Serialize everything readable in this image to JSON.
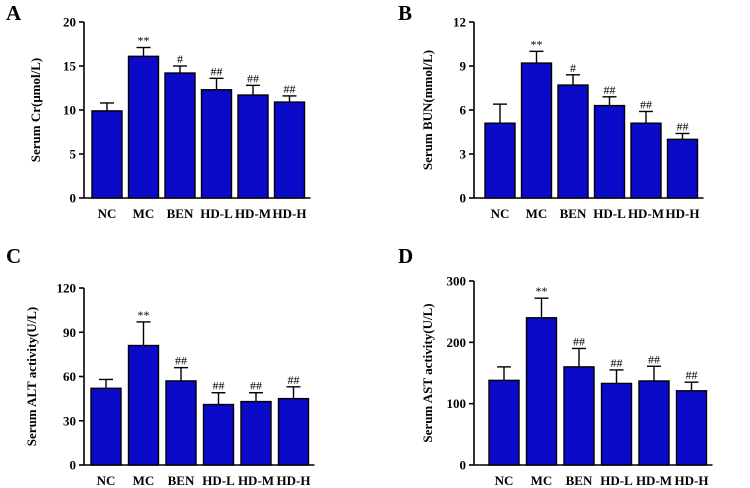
{
  "bar_color": "#0a0ac8",
  "chart_data": [
    {
      "type": "bar",
      "panel": "A",
      "ylabel": "Serum Cr(μmol/L)",
      "categories": [
        "NC",
        "MC",
        "BEN",
        "HD-L",
        "HD-M",
        "HD-H"
      ],
      "values": [
        9.9,
        16.1,
        14.2,
        12.3,
        11.7,
        10.9
      ],
      "errors": [
        0.9,
        1.0,
        0.8,
        1.3,
        1.1,
        0.7
      ],
      "annotations": [
        "",
        "**",
        "#",
        "##",
        "##",
        "##"
      ],
      "ylim": [
        0,
        20
      ],
      "yticks": [
        0,
        5,
        10,
        15,
        20
      ]
    },
    {
      "type": "bar",
      "panel": "B",
      "ylabel": "Serum BUN(mmol/L)",
      "categories": [
        "NC",
        "MC",
        "BEN",
        "HD-L",
        "HD-M",
        "HD-H"
      ],
      "values": [
        5.1,
        9.2,
        7.7,
        6.3,
        5.1,
        4.0
      ],
      "errors": [
        1.3,
        0.8,
        0.7,
        0.6,
        0.8,
        0.4
      ],
      "annotations": [
        "",
        "**",
        "#",
        "##",
        "##",
        "##"
      ],
      "ylim": [
        0,
        12
      ],
      "yticks": [
        0,
        3,
        6,
        9,
        12
      ]
    },
    {
      "type": "bar",
      "panel": "C",
      "ylabel": "Serum ALT activity(U/L)",
      "categories": [
        "NC",
        "MC",
        "BEN",
        "HD-L",
        "HD-M",
        "HD-H"
      ],
      "values": [
        52,
        81,
        57,
        41,
        43,
        45
      ],
      "errors": [
        6,
        16,
        9,
        8,
        6,
        8
      ],
      "annotations": [
        "",
        "**",
        "##",
        "##",
        "##",
        "##"
      ],
      "ylim": [
        0,
        120
      ],
      "yticks": [
        0,
        30,
        60,
        90,
        120
      ]
    },
    {
      "type": "bar",
      "panel": "D",
      "ylabel": "Serum AST activity(U/L)",
      "categories": [
        "NC",
        "MC",
        "BEN",
        "HD-L",
        "HD-M",
        "HD-H"
      ],
      "values": [
        138,
        240,
        160,
        133,
        137,
        121
      ],
      "errors": [
        22,
        32,
        30,
        22,
        24,
        14
      ],
      "annotations": [
        "",
        "**",
        "##",
        "##",
        "##",
        "##"
      ],
      "ylim": [
        0,
        300
      ],
      "yticks": [
        0,
        100,
        200,
        300
      ]
    }
  ]
}
